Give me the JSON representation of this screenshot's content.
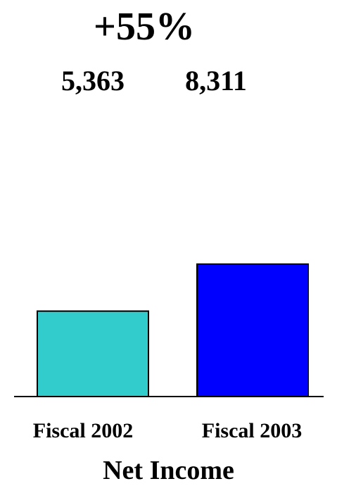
{
  "headline": "+55%",
  "chart_data": {
    "type": "bar",
    "title": "Net Income",
    "categories": [
      "Fiscal 2002",
      "Fiscal 2003"
    ],
    "values": [
      5363,
      8311
    ],
    "value_labels": [
      "5,363",
      "8,311"
    ],
    "colors": [
      "#33CCCC",
      "#0000FF"
    ],
    "ylim": [
      0,
      10000
    ],
    "grid": false,
    "legend": "none"
  }
}
